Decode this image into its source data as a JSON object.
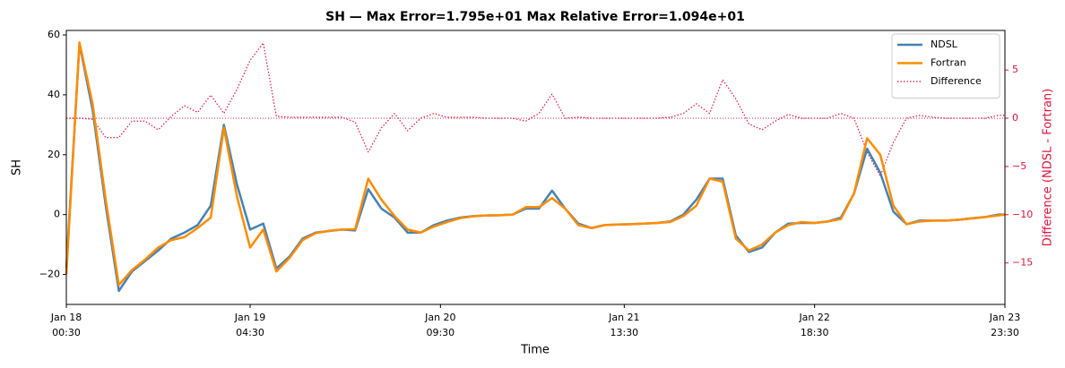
{
  "chart_data": {
    "type": "line",
    "title": "SH  —  Max Error=1.795e+01  Max Relative Error=1.094e+01",
    "xlabel": "Time",
    "ylabel": "SH",
    "y2label": "Difference (NDSL - Fortran)",
    "x": [
      "Jan 18 00:30",
      "Jan 18 02:30",
      "Jan 18 04:30",
      "Jan 18 06:30",
      "Jan 18 08:30",
      "Jan 18 10:30",
      "Jan 18 12:30",
      "Jan 18 14:30",
      "Jan 18 16:30",
      "Jan 18 18:30",
      "Jan 18 20:30",
      "Jan 18 22:30",
      "Jan 19 00:30",
      "Jan 19 02:30",
      "Jan 19 04:30",
      "Jan 19 06:30",
      "Jan 19 08:30",
      "Jan 19 10:30",
      "Jan 19 12:30",
      "Jan 19 14:30",
      "Jan 19 16:30",
      "Jan 19 18:30",
      "Jan 19 20:30",
      "Jan 19 22:30",
      "Jan 20 00:30",
      "Jan 20 02:30",
      "Jan 20 04:30",
      "Jan 20 06:30",
      "Jan 20 08:30",
      "Jan 20 10:30",
      "Jan 20 12:30",
      "Jan 20 14:30",
      "Jan 20 16:30",
      "Jan 20 18:30",
      "Jan 20 20:30",
      "Jan 20 22:30",
      "Jan 21 00:30",
      "Jan 21 02:30",
      "Jan 21 04:30",
      "Jan 21 06:30",
      "Jan 21 08:30",
      "Jan 21 10:30",
      "Jan 21 12:30",
      "Jan 21 14:30",
      "Jan 21 16:30",
      "Jan 21 18:30",
      "Jan 21 20:30",
      "Jan 21 22:30",
      "Jan 22 00:30",
      "Jan 22 02:30",
      "Jan 22 04:30",
      "Jan 22 06:30",
      "Jan 22 08:30",
      "Jan 22 10:30",
      "Jan 22 12:30",
      "Jan 22 14:30",
      "Jan 22 16:30",
      "Jan 22 18:30",
      "Jan 22 20:30",
      "Jan 22 22:30",
      "Jan 23 00:30",
      "Jan 23 02:30",
      "Jan 23 04:30",
      "Jan 23 06:30",
      "Jan 23 08:30",
      "Jan 23 10:30",
      "Jan 23 12:30",
      "Jan 23 14:30",
      "Jan 23 16:30",
      "Jan 23 18:30",
      "Jan 23 20:30",
      "Jan 23 22:30",
      "Jan 23 23:30"
    ],
    "series": [
      {
        "name": "NDSL",
        "color": "#4682b4",
        "style": "solid",
        "values": [
          -18,
          57,
          35,
          3,
          -25.5,
          -19,
          -15.5,
          -12,
          -8,
          -6,
          -3.5,
          3,
          30,
          10,
          -5,
          -3,
          -18,
          -14,
          -8,
          -6,
          -5.5,
          -5,
          -5.3,
          8.5,
          2,
          -1,
          -6,
          -6,
          -3.5,
          -2,
          -1,
          -0.5,
          -0.3,
          -0.2,
          0,
          2,
          2,
          8,
          2,
          -3,
          -4.5,
          -3.5,
          -3.3,
          -3.2,
          -3,
          -2.8,
          -2.3,
          0,
          5,
          12,
          12,
          -7,
          -12.5,
          -11,
          -6,
          -3,
          -2.8,
          -2.8,
          -2.3,
          -1,
          7,
          22,
          14,
          1,
          -3.2,
          -2,
          -2,
          -2,
          -1.7,
          -1.2,
          -0.8,
          0,
          0
        ]
      },
      {
        "name": "Fortran",
        "color": "#ff8c00",
        "style": "solid",
        "values": [
          -20,
          57.5,
          37,
          5,
          -23.5,
          -18.5,
          -15,
          -11,
          -8.5,
          -7.5,
          -4.5,
          -1,
          29,
          6,
          -11,
          -5,
          -19,
          -14.5,
          -8.5,
          -6.2,
          -5.4,
          -5,
          -4.9,
          12,
          5,
          -0.5,
          -5,
          -6,
          -4,
          -2.5,
          -1.2,
          -0.6,
          -0.3,
          -0.2,
          0,
          2.5,
          2.5,
          5.5,
          2,
          -3.5,
          -4.5,
          -3.5,
          -3.3,
          -3.2,
          -3,
          -2.8,
          -2.5,
          -0.5,
          3,
          12,
          11,
          -8,
          -12,
          -10,
          -6,
          -3.5,
          -2.5,
          -2.8,
          -2.3,
          -1.5,
          7,
          25.5,
          20,
          3,
          -3.2,
          -2.3,
          -2,
          -2,
          -1.7,
          -1.3,
          -0.8,
          -0.3,
          0
        ]
      },
      {
        "name": "Difference",
        "color": "#dc143c",
        "style": "dotted",
        "axis": "y2",
        "values": [
          0,
          0,
          -0.1,
          -2,
          -2,
          -0.3,
          -0.3,
          -1.2,
          0.2,
          1.3,
          0.6,
          2.4,
          0.5,
          3,
          6,
          7.8,
          0.2,
          0.1,
          0.1,
          0.1,
          0.1,
          0.1,
          -0.4,
          -3.5,
          -1,
          0.5,
          -1.3,
          0,
          0.5,
          0.1,
          0.1,
          0.1,
          0,
          0,
          0,
          -0.3,
          0.5,
          2.5,
          0,
          0.1,
          0,
          0,
          0,
          0,
          0,
          0,
          0.1,
          0.5,
          1.5,
          0.5,
          4,
          2,
          -0.6,
          -1.2,
          -0.3,
          0.4,
          0,
          0,
          0,
          0.5,
          0,
          -3.5,
          -6,
          -2.5,
          0,
          0.3,
          0.1,
          0,
          0,
          0,
          0,
          0.3,
          0.3
        ]
      }
    ],
    "xlim": [
      "Jan 18 00:30",
      "Jan 23 23:30"
    ],
    "xticks": [
      {
        "value": "Jan 18 00:30",
        "label": "Jan 18\n00:30"
      },
      {
        "value": "Jan 19 04:30",
        "label": "Jan 19\n04:30"
      },
      {
        "value": "Jan 20 09:30",
        "label": "Jan 20\n09:30"
      },
      {
        "value": "Jan 21 13:30",
        "label": "Jan 21\n13:30"
      },
      {
        "value": "Jan 22 18:30",
        "label": "Jan 22\n18:30"
      },
      {
        "value": "Jan 23 23:30",
        "label": "Jan 23\n23:30"
      }
    ],
    "ylim": [
      -30,
      61.5
    ],
    "yticks": [
      {
        "value": -20,
        "label": "−20"
      },
      0,
      20,
      40,
      60
    ],
    "y2lim": [
      -19.3,
      9.1
    ],
    "y2ticks": [
      {
        "value": -15,
        "label": "−15"
      },
      {
        "value": -10,
        "label": "−10"
      },
      {
        "value": -5,
        "label": "−5"
      },
      0,
      5
    ],
    "y2_color": "#dc143c",
    "hline_y2": 0,
    "legend": "upper right"
  }
}
